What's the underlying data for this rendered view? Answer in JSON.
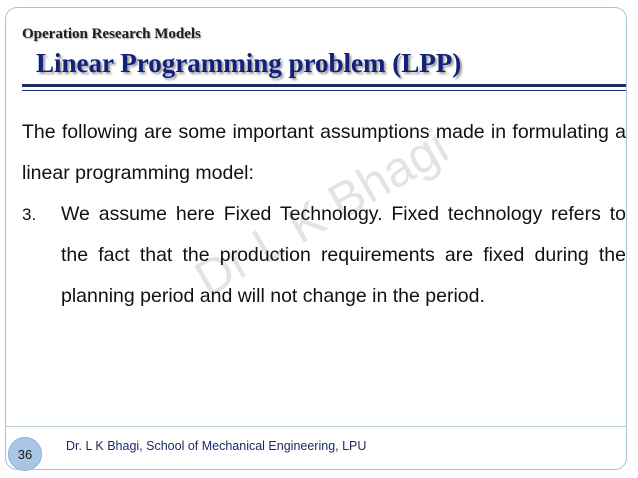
{
  "header": {
    "subtitle": "Operation Research Models",
    "title": "Linear Programming problem (LPP)"
  },
  "content": {
    "intro": "The following are some important assumptions made in formulating a linear programming model:",
    "items": [
      {
        "number": "3.",
        "text": "We assume here Fixed Technology. Fixed technology refers to the fact that the production requirements are fixed during the planning period and will not change in the period."
      }
    ]
  },
  "watermark": "Dr L K Bhagi",
  "footer": {
    "page_number": "36",
    "credit": "Dr. L K Bhagi, School of Mechanical Engineering, LPU"
  }
}
